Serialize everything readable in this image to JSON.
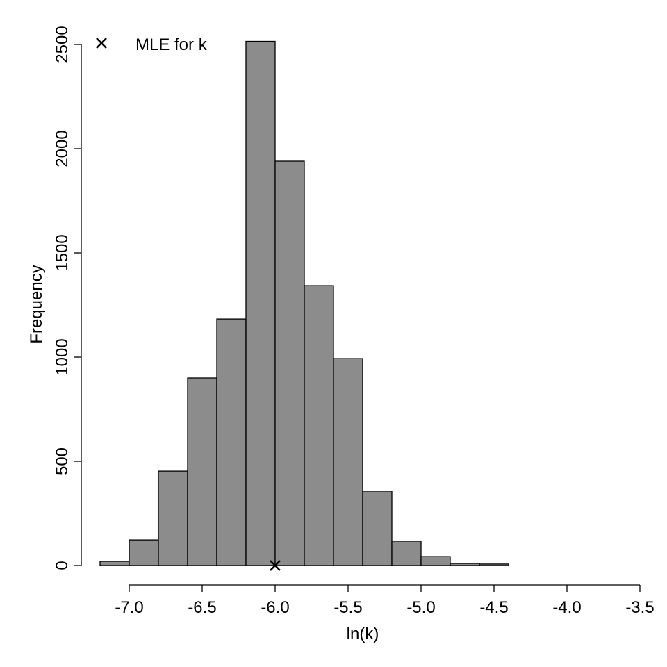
{
  "chart_data": {
    "type": "bar",
    "title": "",
    "xlabel": "ln(k)",
    "ylabel": "Frequency",
    "bin_edges": [
      -7.2,
      -7.0,
      -6.8,
      -6.6,
      -6.4,
      -6.2,
      -6.0,
      -5.8,
      -5.6,
      -5.4,
      -5.2,
      -5.0,
      -4.8,
      -4.6,
      -4.4,
      -4.2,
      -4.0,
      -3.8,
      -3.6
    ],
    "values": [
      20,
      123,
      453,
      900,
      1183,
      2515,
      1940,
      1343,
      993,
      357,
      117,
      43,
      10,
      7,
      0,
      0,
      0,
      0
    ],
    "xlim": [
      -7.2,
      -3.5
    ],
    "ylim": [
      0,
      2500
    ],
    "xticks": [
      "-7.0",
      "-6.5",
      "-6.0",
      "-5.5",
      "-5.0",
      "-4.5",
      "-4.0",
      "-3.5"
    ],
    "xtick_values": [
      -7.0,
      -6.5,
      -6.0,
      -5.5,
      -5.0,
      -4.5,
      -4.0,
      -3.5
    ],
    "yticks": [
      "0",
      "500",
      "1000",
      "1500",
      "2000",
      "2500"
    ],
    "ytick_values": [
      0,
      500,
      1000,
      1500,
      2000,
      2500
    ],
    "bar_color": "#8c8c8c",
    "marker": {
      "x": -6.0,
      "y": 0,
      "symbol": "x"
    },
    "legend": {
      "label": "MLE for k",
      "position": "top-left"
    },
    "grid": false
  }
}
